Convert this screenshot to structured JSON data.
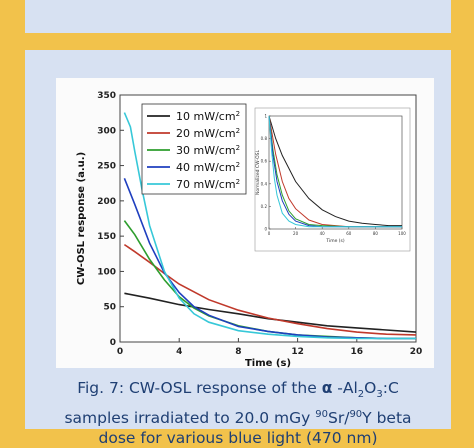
{
  "chart_data": [
    {
      "type": "line",
      "title": "",
      "xlabel": "Time (s)",
      "ylabel": "CW-OSL response (a.u.)",
      "xlim": [
        0,
        20
      ],
      "ylim": [
        0,
        350
      ],
      "x_ticks": [
        0,
        4,
        8,
        12,
        16,
        20
      ],
      "y_ticks": [
        0,
        50,
        100,
        150,
        200,
        250,
        300,
        350
      ],
      "legend_position": "top-left",
      "series": [
        {
          "name": "10 mW/cm",
          "superscript": "2",
          "color": "#222222",
          "x": [
            0.3,
            2,
            4,
            6,
            8,
            10,
            12,
            14,
            16,
            18,
            20
          ],
          "y": [
            69,
            62,
            53,
            46,
            40,
            33,
            28,
            23,
            20,
            17,
            14
          ]
        },
        {
          "name": "20 mW/cm",
          "superscript": "2",
          "color": "#c0392b",
          "x": [
            0.3,
            1,
            2,
            3,
            4,
            6,
            8,
            10,
            12,
            14,
            16,
            18,
            20
          ],
          "y": [
            138,
            128,
            113,
            97,
            82,
            60,
            45,
            34,
            26,
            19,
            14,
            11,
            10
          ]
        },
        {
          "name": "30 mW/cm",
          "superscript": "2",
          "color": "#2e9e2e",
          "x": [
            0.3,
            1,
            2,
            3,
            4,
            5,
            6,
            8,
            10,
            12,
            14,
            16,
            18,
            20
          ],
          "y": [
            172,
            152,
            117,
            88,
            64,
            48,
            37,
            23,
            15,
            10,
            8,
            6,
            5,
            5
          ]
        },
        {
          "name": "40 mW/cm",
          "superscript": "2",
          "color": "#1f3fbf",
          "x": [
            0.3,
            1,
            2,
            3,
            4,
            5,
            6,
            8,
            10,
            12,
            14,
            16,
            18,
            20
          ],
          "y": [
            232,
            195,
            140,
            98,
            70,
            50,
            38,
            22,
            15,
            10,
            7,
            6,
            5,
            5
          ]
        },
        {
          "name": "70 mW/cm",
          "superscript": "2",
          "color": "#37c8d8",
          "x": [
            0.3,
            0.7,
            1,
            1.5,
            2,
            3,
            4,
            5,
            6,
            8,
            10,
            12,
            14,
            16,
            18,
            20
          ],
          "y": [
            325,
            305,
            270,
            215,
            165,
            100,
            62,
            40,
            28,
            16,
            11,
            8,
            6,
            5,
            5,
            5
          ]
        }
      ]
    },
    {
      "type": "line",
      "title": "",
      "xlabel": "Time (s)",
      "ylabel": "Normalized CW-OSL",
      "xlim": [
        0,
        100
      ],
      "ylim": [
        0,
        1
      ],
      "x_ticks": [
        0,
        20,
        40,
        60,
        80,
        100
      ],
      "y_ticks": [
        0,
        0.2,
        0.4,
        0.6,
        0.8,
        1.0
      ],
      "series": [
        {
          "name": "10 mW/cm",
          "color": "#222222",
          "x": [
            0,
            5,
            10,
            20,
            30,
            40,
            50,
            60,
            70,
            80,
            90,
            100
          ],
          "y": [
            1.0,
            0.8,
            0.65,
            0.42,
            0.27,
            0.17,
            0.11,
            0.07,
            0.05,
            0.04,
            0.03,
            0.03
          ]
        },
        {
          "name": "20 mW/cm",
          "color": "#c0392b",
          "x": [
            0,
            5,
            10,
            15,
            20,
            30,
            40,
            50,
            60,
            80,
            100
          ],
          "y": [
            1.0,
            0.66,
            0.42,
            0.27,
            0.18,
            0.08,
            0.04,
            0.03,
            0.02,
            0.02,
            0.02
          ]
        },
        {
          "name": "30 mW/cm",
          "color": "#2e9e2e",
          "x": [
            0,
            3,
            6,
            10,
            15,
            20,
            30,
            40,
            60,
            80,
            100
          ],
          "y": [
            1.0,
            0.7,
            0.48,
            0.3,
            0.16,
            0.09,
            0.04,
            0.03,
            0.02,
            0.02,
            0.02
          ]
        },
        {
          "name": "40 mW/cm",
          "color": "#1f3fbf",
          "x": [
            0,
            3,
            6,
            10,
            15,
            20,
            30,
            40,
            60,
            80,
            100
          ],
          "y": [
            1.0,
            0.65,
            0.42,
            0.25,
            0.13,
            0.07,
            0.03,
            0.02,
            0.02,
            0.02,
            0.02
          ]
        },
        {
          "name": "70 mW/cm",
          "color": "#37c8d8",
          "x": [
            0,
            2,
            4,
            6,
            10,
            15,
            20,
            30,
            50,
            80,
            100
          ],
          "y": [
            1.0,
            0.68,
            0.45,
            0.3,
            0.14,
            0.07,
            0.04,
            0.02,
            0.02,
            0.02,
            0.02
          ]
        }
      ]
    }
  ],
  "caption": {
    "line1_prefix": "Fig. 7: CW-OSL response of the ",
    "alpha": "α",
    "line1_mid": " -Al",
    "sub_2": "2",
    "line1_o": "O",
    "sub_3": "3",
    "line1_suffix": ":C",
    "line2_prefix": "samples irradiated to 20.0 mGy ",
    "sup_90a": "90",
    "line2_sr": "Sr/",
    "sup_90b": "90",
    "line2_suffix": "Y beta",
    "line3": "dose for various blue light (470 nm)"
  },
  "colors": {
    "page_background": "#f2c24b",
    "panel_background": "#d7e1f2",
    "caption_text": "#1f3f73"
  }
}
